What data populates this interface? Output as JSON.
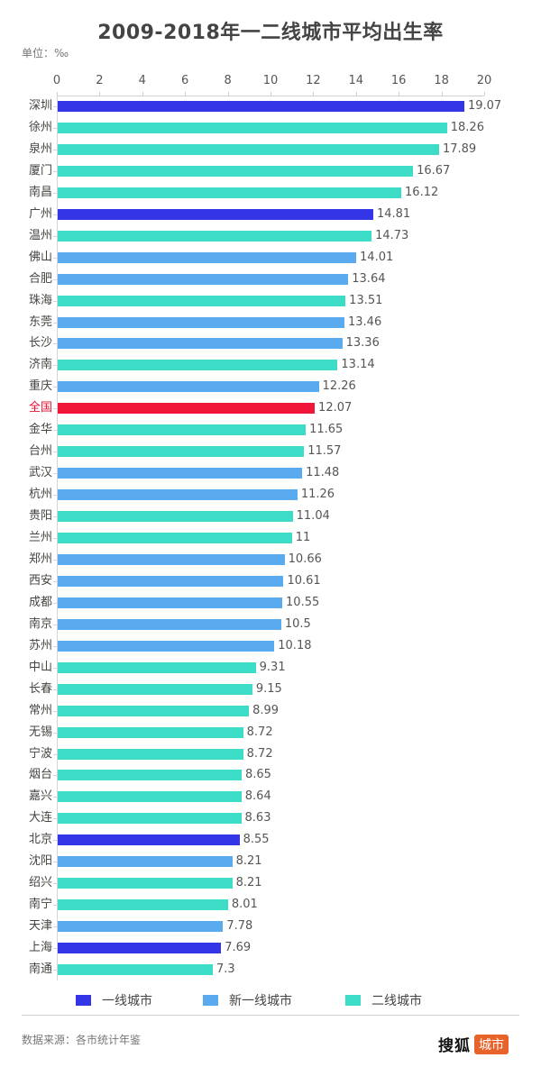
{
  "title": "2009-2018年一二线城市平均出生率",
  "unit": "单位：‰",
  "source": "数据来源：各市统计年鉴",
  "logo": {
    "text": "搜狐",
    "badge": "城市"
  },
  "colors": {
    "tier1": "#3535e8",
    "new_tier1": "#5aaaf0",
    "tier2": "#3ddcc6",
    "national": "#f2153a",
    "national_label": "#e5102e"
  },
  "legend": [
    {
      "label": "一线城市",
      "color": "#3535e8"
    },
    {
      "label": "新一线城市",
      "color": "#5aaaf0"
    },
    {
      "label": "二线城市",
      "color": "#3ddcc6"
    }
  ],
  "chart_data": {
    "type": "bar",
    "orientation": "horizontal",
    "title": "2009-2018年一二线城市平均出生率",
    "xlabel": "",
    "ylabel": "",
    "unit": "‰",
    "xlim": [
      0,
      20
    ],
    "xticks": [
      0,
      2,
      4,
      6,
      8,
      10,
      12,
      14,
      16,
      18,
      20
    ],
    "axis_position": "top",
    "grid": false,
    "legend_position": "bottom",
    "categories": [
      "深圳",
      "徐州",
      "泉州",
      "厦门",
      "南昌",
      "广州",
      "温州",
      "佛山",
      "合肥",
      "珠海",
      "东莞",
      "长沙",
      "济南",
      "重庆",
      "全国",
      "金华",
      "台州",
      "武汉",
      "杭州",
      "贵阳",
      "兰州",
      "郑州",
      "西安",
      "成都",
      "南京",
      "苏州",
      "中山",
      "长春",
      "常州",
      "无锡",
      "宁波",
      "烟台",
      "嘉兴",
      "大连",
      "北京",
      "沈阳",
      "绍兴",
      "南宁",
      "天津",
      "上海",
      "南通"
    ],
    "values": [
      19.07,
      18.26,
      17.89,
      16.67,
      16.12,
      14.81,
      14.73,
      14.01,
      13.64,
      13.51,
      13.46,
      13.36,
      13.14,
      12.26,
      12.07,
      11.65,
      11.57,
      11.48,
      11.26,
      11.04,
      11,
      10.66,
      10.61,
      10.55,
      10.5,
      10.18,
      9.31,
      9.15,
      8.99,
      8.72,
      8.72,
      8.65,
      8.64,
      8.63,
      8.55,
      8.21,
      8.21,
      8.01,
      7.78,
      7.69,
      7.3
    ],
    "labels": [
      "19.07",
      "18.26",
      "17.89",
      "16.67",
      "16.12",
      "14.81",
      "14.73",
      "14.01",
      "13.64",
      "13.51",
      "13.46",
      "13.36",
      "13.14",
      "12.26",
      "12.07",
      "11.65",
      "11.57",
      "11.48",
      "11.26",
      "11.04",
      "11",
      "10.66",
      "10.61",
      "10.55",
      "10.5",
      "10.18",
      "9.31",
      "9.15",
      "8.99",
      "8.72",
      "8.72",
      "8.65",
      "8.64",
      "8.63",
      "8.55",
      "8.21",
      "8.21",
      "8.01",
      "7.78",
      "7.69",
      "7.3"
    ],
    "tiers": [
      "tier1",
      "tier2",
      "tier2",
      "tier2",
      "tier2",
      "tier1",
      "tier2",
      "new_tier1",
      "new_tier1",
      "tier2",
      "new_tier1",
      "new_tier1",
      "tier2",
      "new_tier1",
      "national",
      "tier2",
      "tier2",
      "new_tier1",
      "new_tier1",
      "tier2",
      "tier2",
      "new_tier1",
      "new_tier1",
      "new_tier1",
      "new_tier1",
      "new_tier1",
      "tier2",
      "tier2",
      "tier2",
      "tier2",
      "tier2",
      "tier2",
      "tier2",
      "tier2",
      "tier1",
      "new_tier1",
      "tier2",
      "tier2",
      "new_tier1",
      "tier1",
      "tier2"
    ],
    "series_legend": [
      "一线城市",
      "新一线城市",
      "二线城市"
    ]
  }
}
